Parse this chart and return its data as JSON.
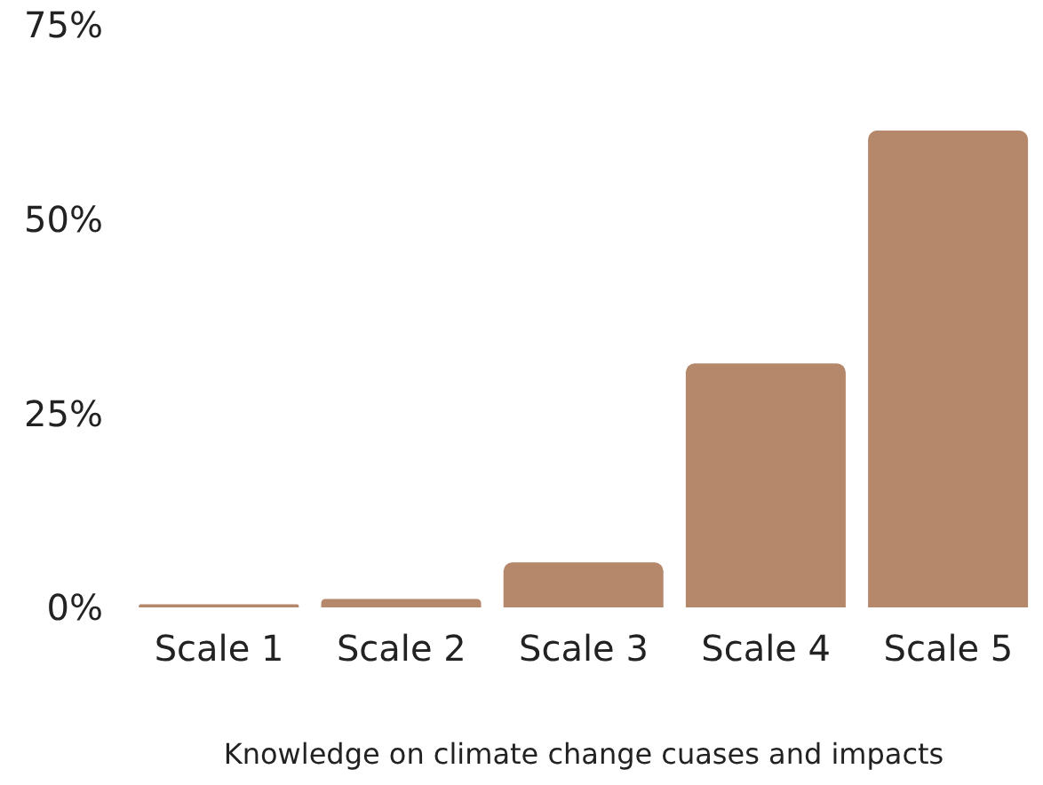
{
  "chart_data": {
    "type": "bar",
    "xlabel": "Knowledge on climate change cuases and impacts",
    "categories": [
      "Scale 1",
      "Scale 2",
      "Scale 3",
      "Scale 4",
      "Scale 5"
    ],
    "values": [
      0.4,
      1.1,
      5.8,
      31.4,
      61.4
    ],
    "color": "#b5876b",
    "ylim": [
      0,
      75
    ],
    "yticks": [
      {
        "value": 0,
        "label": "0%"
      },
      {
        "value": 25,
        "label": "25%"
      },
      {
        "value": 50,
        "label": "50%"
      },
      {
        "value": 75,
        "label": "75%"
      }
    ],
    "grid": false
  }
}
